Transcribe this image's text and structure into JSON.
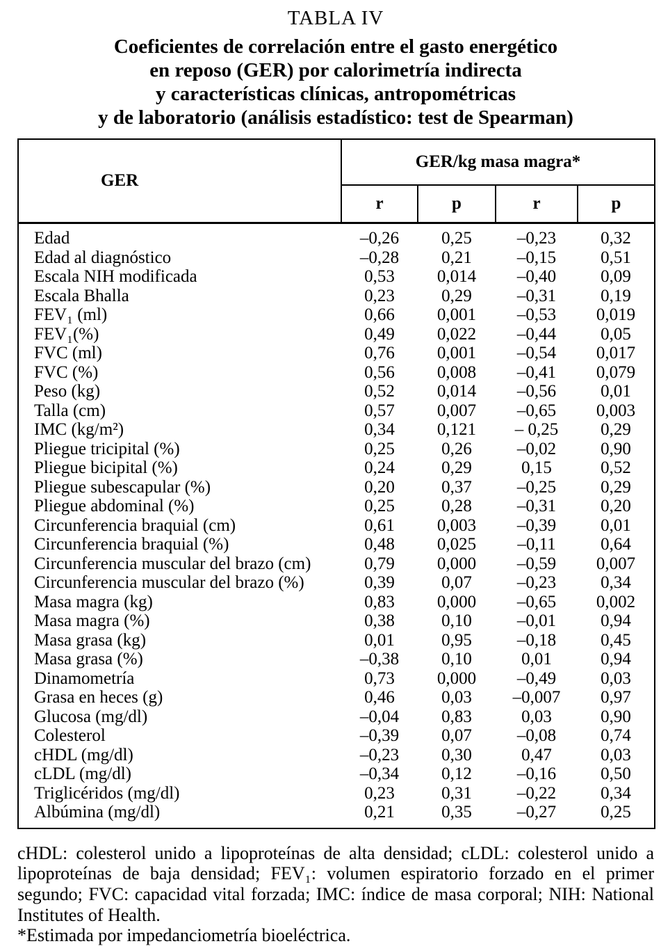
{
  "title": "TABLA IV",
  "subtitle": [
    "Coeficientes de correlación entre el gasto energético",
    "en reposo (GER) por calorimetría indirecta",
    "y características clínicas, antropométricas",
    "y de laboratorio (análisis estadístico: test de Spearman)"
  ],
  "table": {
    "row_header": "GER",
    "span_header": "GER/kg masa magra*",
    "sub_headers": [
      "r",
      "p",
      "r",
      "p"
    ],
    "rows": [
      {
        "label": "Edad",
        "values": [
          "–0,26",
          "0,25",
          "–0,23",
          "0,32"
        ]
      },
      {
        "label": "Edad al diagnóstico",
        "values": [
          "–0,28",
          "0,21",
          "–0,15",
          "0,51"
        ]
      },
      {
        "label": "Escala NIH modificada",
        "values": [
          "0,53",
          "0,014",
          "–0,40",
          "0,09"
        ]
      },
      {
        "label": "Escala Bhalla",
        "values": [
          "0,23",
          "0,29",
          "–0,31",
          "0,19"
        ]
      },
      {
        "label": "FEV₁ (ml)",
        "values": [
          "0,66",
          "0,001",
          "–0,53",
          "0,019"
        ]
      },
      {
        "label": "FEV₁(%)",
        "values": [
          "0,49",
          "0,022",
          "–0,44",
          "0,05"
        ]
      },
      {
        "label": "FVC (ml)",
        "values": [
          "0,76",
          "0,001",
          "–0,54",
          "0,017"
        ]
      },
      {
        "label": "FVC (%)",
        "values": [
          "0,56",
          "0,008",
          "–0,41",
          "0,079"
        ]
      },
      {
        "label": "Peso (kg)",
        "values": [
          "0,52",
          "0,014",
          "–0,56",
          "0,01"
        ]
      },
      {
        "label": "Talla (cm)",
        "values": [
          "0,57",
          "0,007",
          "–0,65",
          "0,003"
        ]
      },
      {
        "label": "IMC (kg/m²)",
        "values": [
          "0,34",
          "0,121",
          "– 0,25",
          "0,29"
        ]
      },
      {
        "label": "Pliegue tricipital (%)",
        "values": [
          "0,25",
          "0,26",
          "–0,02",
          "0,90"
        ]
      },
      {
        "label": "Pliegue bicipital (%)",
        "values": [
          "0,24",
          "0,29",
          "0,15",
          "0,52"
        ]
      },
      {
        "label": "Pliegue subescapular (%)",
        "values": [
          "0,20",
          "0,37",
          "–0,25",
          "0,29"
        ]
      },
      {
        "label": "Pliegue abdominal (%)",
        "values": [
          "0,25",
          "0,28",
          "–0,31",
          "0,20"
        ]
      },
      {
        "label": "Circunferencia braquial (cm)",
        "values": [
          "0,61",
          "0,003",
          "–0,39",
          "0,01"
        ]
      },
      {
        "label": "Circunferencia braquial (%)",
        "values": [
          "0,48",
          "0,025",
          "–0,11",
          "0,64"
        ]
      },
      {
        "label": "Circunferencia muscular del brazo (cm)",
        "values": [
          "0,79",
          "0,000",
          "–0,59",
          "0,007"
        ]
      },
      {
        "label": "Circunferencia muscular del brazo (%)",
        "values": [
          "0,39",
          "0,07",
          "–0,23",
          "0,34"
        ]
      },
      {
        "label": "Masa magra (kg)",
        "values": [
          "0,83",
          "0,000",
          "–0,65",
          "0,002"
        ]
      },
      {
        "label": "Masa magra (%)",
        "values": [
          "0,38",
          "0,10",
          "–0,01",
          "0,94"
        ]
      },
      {
        "label": "Masa grasa (kg)",
        "values": [
          "0,01",
          "0,95",
          "–0,18",
          "0,45"
        ]
      },
      {
        "label": "Masa grasa (%)",
        "values": [
          "–0,38",
          "0,10",
          "0,01",
          "0,94"
        ]
      },
      {
        "label": "Dinamometría",
        "values": [
          "0,73",
          "0,000",
          "–0,49",
          "0,03"
        ]
      },
      {
        "label": "Grasa en heces (g)",
        "values": [
          "0,46",
          "0,03",
          "–0,007",
          "0,97"
        ]
      },
      {
        "label": "Glucosa (mg/dl)",
        "values": [
          "–0,04",
          "0,83",
          "0,03",
          "0,90"
        ]
      },
      {
        "label": "Colesterol",
        "values": [
          "–0,39",
          "0,07",
          "–0,08",
          "0,74"
        ]
      },
      {
        "label": "cHDL (mg/dl)",
        "values": [
          "–0,23",
          "0,30",
          "0,47",
          "0,03"
        ]
      },
      {
        "label": "cLDL (mg/dl)",
        "values": [
          "–0,34",
          "0,12",
          "–0,16",
          "0,50"
        ]
      },
      {
        "label": "Triglicéridos (mg/dl)",
        "values": [
          "0,23",
          "0,31",
          "–0,22",
          "0,34"
        ]
      },
      {
        "label": "Albúmina (mg/dl)",
        "values": [
          "0,21",
          "0,35",
          "–0,27",
          "0,25"
        ]
      }
    ]
  },
  "footnotes": {
    "abbreviations": "cHDL: colesterol unido a lipoproteínas de alta densidad; cLDL: colesterol unido a lipoproteínas de baja densidad; FEV₁: volumen espiratorio forzado en el primer segundo; FVC: capacidad vital forzada; IMC: índice de masa corporal; NIH: National Institutes of Health.",
    "asterisk": "*Estimada por impedanciometría bioeléctrica."
  }
}
